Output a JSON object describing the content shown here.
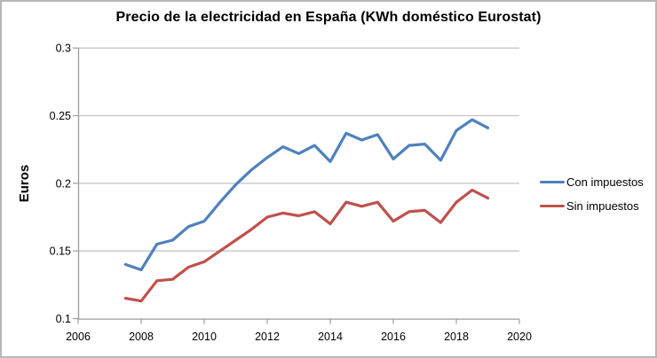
{
  "title": "Precio de la electricidad en España (KWh doméstico Eurostat)",
  "colors": {
    "con_impuestos": "#4F81BD",
    "sin_impuestos": "#C0504D",
    "gridline": "#C4C4C4",
    "axis": "#9C9C9C",
    "border": "#B7B7B7",
    "text": "#000000"
  },
  "chart_data": {
    "type": "line",
    "title": "Precio de la electricidad en España (KWh doméstico Eurostat)",
    "xlabel": "",
    "ylabel": "Euros",
    "xlim": [
      2006,
      2020
    ],
    "ylim": [
      0.1,
      0.3
    ],
    "x_ticks": [
      2006,
      2008,
      2010,
      2012,
      2014,
      2016,
      2018,
      2020
    ],
    "y_ticks": [
      0.1,
      0.15,
      0.2,
      0.25,
      0.3
    ],
    "grid": "horizontal",
    "legend_position": "right",
    "x": [
      2007.5,
      2008,
      2008.5,
      2009,
      2009.5,
      2010,
      2010.5,
      2011,
      2011.5,
      2012,
      2012.5,
      2013,
      2013.5,
      2014,
      2014.5,
      2015,
      2015.5,
      2016,
      2016.5,
      2017,
      2017.5,
      2018,
      2018.5,
      2019
    ],
    "series": [
      {
        "name": "Con impuestos",
        "color": "#4F81BD",
        "values": [
          0.14,
          0.136,
          0.155,
          0.158,
          0.168,
          0.172,
          0.186,
          0.199,
          0.21,
          0.219,
          0.227,
          0.222,
          0.228,
          0.216,
          0.237,
          0.232,
          0.236,
          0.218,
          0.228,
          0.229,
          0.217,
          0.239,
          0.247,
          0.241
        ]
      },
      {
        "name": "Sin impuestos",
        "color": "#C0504D",
        "values": [
          0.115,
          0.113,
          0.128,
          0.129,
          0.138,
          0.142,
          0.15,
          0.158,
          0.166,
          0.175,
          0.178,
          0.176,
          0.179,
          0.17,
          0.186,
          0.183,
          0.186,
          0.172,
          0.179,
          0.18,
          0.171,
          0.186,
          0.195,
          0.189
        ]
      }
    ]
  }
}
